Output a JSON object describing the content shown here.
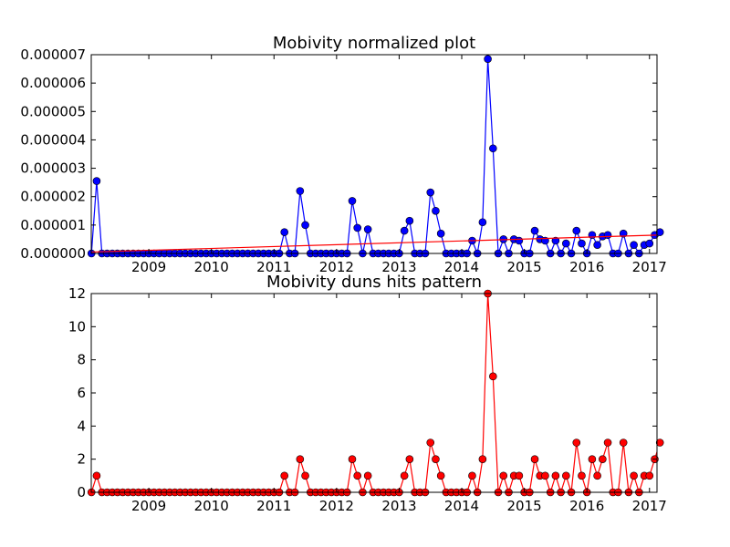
{
  "figure": {
    "background": "#ffffff"
  },
  "chart_data": [
    {
      "type": "line",
      "title": "Mobivity normalized plot",
      "xlabel": "",
      "ylabel": "",
      "xlim": [
        2008.08,
        2017.12
      ],
      "ylim": [
        0,
        7e-06
      ],
      "x_ticks": [
        2009,
        2010,
        2011,
        2012,
        2013,
        2014,
        2015,
        2016,
        2017
      ],
      "x_tick_labels": [
        "2009",
        "2010",
        "2011",
        "2012",
        "2013",
        "2014",
        "2015",
        "2016",
        "2017"
      ],
      "y_ticks": [
        0,
        1e-06,
        2e-06,
        3e-06,
        4e-06,
        5e-06,
        6e-06,
        7e-06
      ],
      "y_tick_labels": [
        "0.000000",
        "0.000001",
        "0.000002",
        "0.000003",
        "0.000004",
        "0.000005",
        "0.000006",
        "0.000007"
      ],
      "grid": false,
      "series": [
        {
          "color": "#0000ff",
          "marker": "circle",
          "points": [
            [
              "2008-02",
              0
            ],
            [
              "2008-03",
              2.55e-06
            ],
            [
              "2008-04",
              0
            ],
            [
              "2008-05",
              0
            ],
            [
              "2008-06",
              0
            ],
            [
              "2008-07",
              0
            ],
            [
              "2008-08",
              0
            ],
            [
              "2008-09",
              0
            ],
            [
              "2008-10",
              0
            ],
            [
              "2008-11",
              0
            ],
            [
              "2008-12",
              0
            ],
            [
              "2009-01",
              0
            ],
            [
              "2009-02",
              0
            ],
            [
              "2009-03",
              0
            ],
            [
              "2009-04",
              0
            ],
            [
              "2009-05",
              0
            ],
            [
              "2009-06",
              0
            ],
            [
              "2009-07",
              0
            ],
            [
              "2009-08",
              0
            ],
            [
              "2009-09",
              0
            ],
            [
              "2009-10",
              0
            ],
            [
              "2009-11",
              0
            ],
            [
              "2009-12",
              0
            ],
            [
              "2010-01",
              0
            ],
            [
              "2010-02",
              0
            ],
            [
              "2010-03",
              0
            ],
            [
              "2010-04",
              0
            ],
            [
              "2010-05",
              0
            ],
            [
              "2010-06",
              0
            ],
            [
              "2010-07",
              0
            ],
            [
              "2010-08",
              0
            ],
            [
              "2010-09",
              0
            ],
            [
              "2010-10",
              0
            ],
            [
              "2010-11",
              0
            ],
            [
              "2010-12",
              0
            ],
            [
              "2011-01",
              0
            ],
            [
              "2011-02",
              0
            ],
            [
              "2011-03",
              7.5e-07
            ],
            [
              "2011-04",
              0
            ],
            [
              "2011-05",
              0
            ],
            [
              "2011-06",
              2.2e-06
            ],
            [
              "2011-07",
              1e-06
            ],
            [
              "2011-08",
              0
            ],
            [
              "2011-09",
              0
            ],
            [
              "2011-10",
              0
            ],
            [
              "2011-11",
              0
            ],
            [
              "2011-12",
              0
            ],
            [
              "2012-01",
              0
            ],
            [
              "2012-02",
              0
            ],
            [
              "2012-03",
              0
            ],
            [
              "2012-04",
              1.85e-06
            ],
            [
              "2012-05",
              9e-07
            ],
            [
              "2012-06",
              0
            ],
            [
              "2012-07",
              8.5e-07
            ],
            [
              "2012-08",
              0
            ],
            [
              "2012-09",
              0
            ],
            [
              "2012-10",
              0
            ],
            [
              "2012-11",
              0
            ],
            [
              "2012-12",
              0
            ],
            [
              "2013-01",
              0
            ],
            [
              "2013-02",
              8e-07
            ],
            [
              "2013-03",
              1.15e-06
            ],
            [
              "2013-04",
              0
            ],
            [
              "2013-05",
              0
            ],
            [
              "2013-06",
              0
            ],
            [
              "2013-07",
              2.15e-06
            ],
            [
              "2013-08",
              1.5e-06
            ],
            [
              "2013-09",
              7e-07
            ],
            [
              "2013-10",
              0
            ],
            [
              "2013-11",
              0
            ],
            [
              "2013-12",
              0
            ],
            [
              "2014-01",
              0
            ],
            [
              "2014-02",
              0
            ],
            [
              "2014-03",
              4.5e-07
            ],
            [
              "2014-04",
              0
            ],
            [
              "2014-05",
              1.1e-06
            ],
            [
              "2014-06",
              6.85e-06
            ],
            [
              "2014-07",
              3.7e-06
            ],
            [
              "2014-08",
              0
            ],
            [
              "2014-09",
              5e-07
            ],
            [
              "2014-10",
              0
            ],
            [
              "2014-11",
              5e-07
            ],
            [
              "2014-12",
              4.5e-07
            ],
            [
              "2015-01",
              0
            ],
            [
              "2015-02",
              0
            ],
            [
              "2015-03",
              8e-07
            ],
            [
              "2015-04",
              5e-07
            ],
            [
              "2015-05",
              4.5e-07
            ],
            [
              "2015-06",
              0
            ],
            [
              "2015-07",
              4.5e-07
            ],
            [
              "2015-08",
              0
            ],
            [
              "2015-09",
              3.5e-07
            ],
            [
              "2015-10",
              0
            ],
            [
              "2015-11",
              8e-07
            ],
            [
              "2015-12",
              3.5e-07
            ],
            [
              "2016-01",
              0
            ],
            [
              "2016-02",
              6.5e-07
            ],
            [
              "2016-03",
              3e-07
            ],
            [
              "2016-04",
              6e-07
            ],
            [
              "2016-05",
              6.5e-07
            ],
            [
              "2016-06",
              0
            ],
            [
              "2016-07",
              0
            ],
            [
              "2016-08",
              7e-07
            ],
            [
              "2016-09",
              0
            ],
            [
              "2016-10",
              3e-07
            ],
            [
              "2016-11",
              0
            ],
            [
              "2016-12",
              3e-07
            ],
            [
              "2017-01",
              3.5e-07
            ],
            [
              "2017-02",
              6.5e-07
            ],
            [
              "2017-03",
              7.5e-07
            ]
          ]
        },
        {
          "color": "#ff0000",
          "marker": "none",
          "points": [
            [
              "2008-02",
              5e-08
            ],
            [
              "2017-03",
              6.5e-07
            ]
          ]
        }
      ]
    },
    {
      "type": "line",
      "title": "Mobivity duns hits pattern",
      "xlabel": "",
      "ylabel": "",
      "xlim": [
        2008.08,
        2017.12
      ],
      "ylim": [
        0,
        12
      ],
      "x_ticks": [
        2009,
        2010,
        2011,
        2012,
        2013,
        2014,
        2015,
        2016,
        2017
      ],
      "x_tick_labels": [
        "2009",
        "2010",
        "2011",
        "2012",
        "2013",
        "2014",
        "2015",
        "2016",
        "2017"
      ],
      "y_ticks": [
        0,
        2,
        4,
        6,
        8,
        10,
        12
      ],
      "y_tick_labels": [
        "0",
        "2",
        "4",
        "6",
        "8",
        "10",
        "12"
      ],
      "grid": false,
      "series": [
        {
          "color": "#ff0000",
          "marker": "circle",
          "points": [
            [
              "2008-02",
              0
            ],
            [
              "2008-03",
              1
            ],
            [
              "2008-04",
              0
            ],
            [
              "2008-05",
              0
            ],
            [
              "2008-06",
              0
            ],
            [
              "2008-07",
              0
            ],
            [
              "2008-08",
              0
            ],
            [
              "2008-09",
              0
            ],
            [
              "2008-10",
              0
            ],
            [
              "2008-11",
              0
            ],
            [
              "2008-12",
              0
            ],
            [
              "2009-01",
              0
            ],
            [
              "2009-02",
              0
            ],
            [
              "2009-03",
              0
            ],
            [
              "2009-04",
              0
            ],
            [
              "2009-05",
              0
            ],
            [
              "2009-06",
              0
            ],
            [
              "2009-07",
              0
            ],
            [
              "2009-08",
              0
            ],
            [
              "2009-09",
              0
            ],
            [
              "2009-10",
              0
            ],
            [
              "2009-11",
              0
            ],
            [
              "2009-12",
              0
            ],
            [
              "2010-01",
              0
            ],
            [
              "2010-02",
              0
            ],
            [
              "2010-03",
              0
            ],
            [
              "2010-04",
              0
            ],
            [
              "2010-05",
              0
            ],
            [
              "2010-06",
              0
            ],
            [
              "2010-07",
              0
            ],
            [
              "2010-08",
              0
            ],
            [
              "2010-09",
              0
            ],
            [
              "2010-10",
              0
            ],
            [
              "2010-11",
              0
            ],
            [
              "2010-12",
              0
            ],
            [
              "2011-01",
              0
            ],
            [
              "2011-02",
              0
            ],
            [
              "2011-03",
              1
            ],
            [
              "2011-04",
              0
            ],
            [
              "2011-05",
              0
            ],
            [
              "2011-06",
              2
            ],
            [
              "2011-07",
              1
            ],
            [
              "2011-08",
              0
            ],
            [
              "2011-09",
              0
            ],
            [
              "2011-10",
              0
            ],
            [
              "2011-11",
              0
            ],
            [
              "2011-12",
              0
            ],
            [
              "2012-01",
              0
            ],
            [
              "2012-02",
              0
            ],
            [
              "2012-03",
              0
            ],
            [
              "2012-04",
              2
            ],
            [
              "2012-05",
              1
            ],
            [
              "2012-06",
              0
            ],
            [
              "2012-07",
              1
            ],
            [
              "2012-08",
              0
            ],
            [
              "2012-09",
              0
            ],
            [
              "2012-10",
              0
            ],
            [
              "2012-11",
              0
            ],
            [
              "2012-12",
              0
            ],
            [
              "2013-01",
              0
            ],
            [
              "2013-02",
              1
            ],
            [
              "2013-03",
              2
            ],
            [
              "2013-04",
              0
            ],
            [
              "2013-05",
              0
            ],
            [
              "2013-06",
              0
            ],
            [
              "2013-07",
              3
            ],
            [
              "2013-08",
              2
            ],
            [
              "2013-09",
              1
            ],
            [
              "2013-10",
              0
            ],
            [
              "2013-11",
              0
            ],
            [
              "2013-12",
              0
            ],
            [
              "2014-01",
              0
            ],
            [
              "2014-02",
              0
            ],
            [
              "2014-03",
              1
            ],
            [
              "2014-04",
              0
            ],
            [
              "2014-05",
              2
            ],
            [
              "2014-06",
              12
            ],
            [
              "2014-07",
              7
            ],
            [
              "2014-08",
              0
            ],
            [
              "2014-09",
              1
            ],
            [
              "2014-10",
              0
            ],
            [
              "2014-11",
              1
            ],
            [
              "2014-12",
              1
            ],
            [
              "2015-01",
              0
            ],
            [
              "2015-02",
              0
            ],
            [
              "2015-03",
              2
            ],
            [
              "2015-04",
              1
            ],
            [
              "2015-05",
              1
            ],
            [
              "2015-06",
              0
            ],
            [
              "2015-07",
              1
            ],
            [
              "2015-08",
              0
            ],
            [
              "2015-09",
              1
            ],
            [
              "2015-10",
              0
            ],
            [
              "2015-11",
              3
            ],
            [
              "2015-12",
              1
            ],
            [
              "2016-01",
              0
            ],
            [
              "2016-02",
              2
            ],
            [
              "2016-03",
              1
            ],
            [
              "2016-04",
              2
            ],
            [
              "2016-05",
              3
            ],
            [
              "2016-06",
              0
            ],
            [
              "2016-07",
              0
            ],
            [
              "2016-08",
              3
            ],
            [
              "2016-09",
              0
            ],
            [
              "2016-10",
              1
            ],
            [
              "2016-11",
              0
            ],
            [
              "2016-12",
              1
            ],
            [
              "2017-01",
              1
            ],
            [
              "2017-02",
              2
            ],
            [
              "2017-03",
              3
            ]
          ]
        }
      ]
    }
  ]
}
